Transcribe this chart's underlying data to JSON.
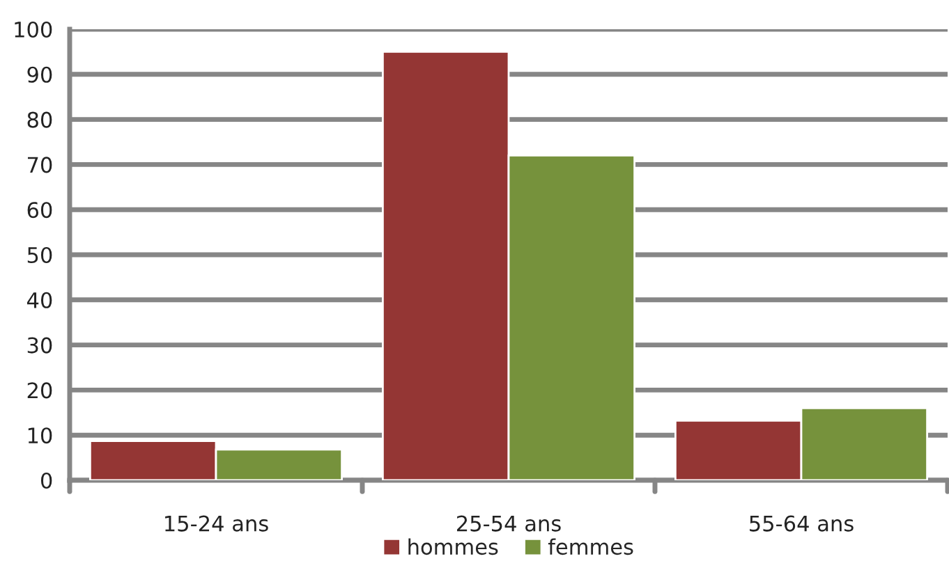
{
  "chart_data": {
    "type": "bar",
    "categories": [
      "15-24 ans",
      "25-54 ans",
      "55-64 ans"
    ],
    "series": [
      {
        "name": "hommes",
        "color": "#943634",
        "values": [
          8.7,
          95,
          13.2
        ]
      },
      {
        "name": "femmes",
        "color": "#76923c",
        "values": [
          6.8,
          72,
          16
        ]
      }
    ],
    "ylim": [
      0,
      100
    ],
    "yticks": [
      0,
      10,
      20,
      30,
      40,
      50,
      60,
      70,
      80,
      90,
      100
    ],
    "grid": "y",
    "legend": "bottom"
  }
}
